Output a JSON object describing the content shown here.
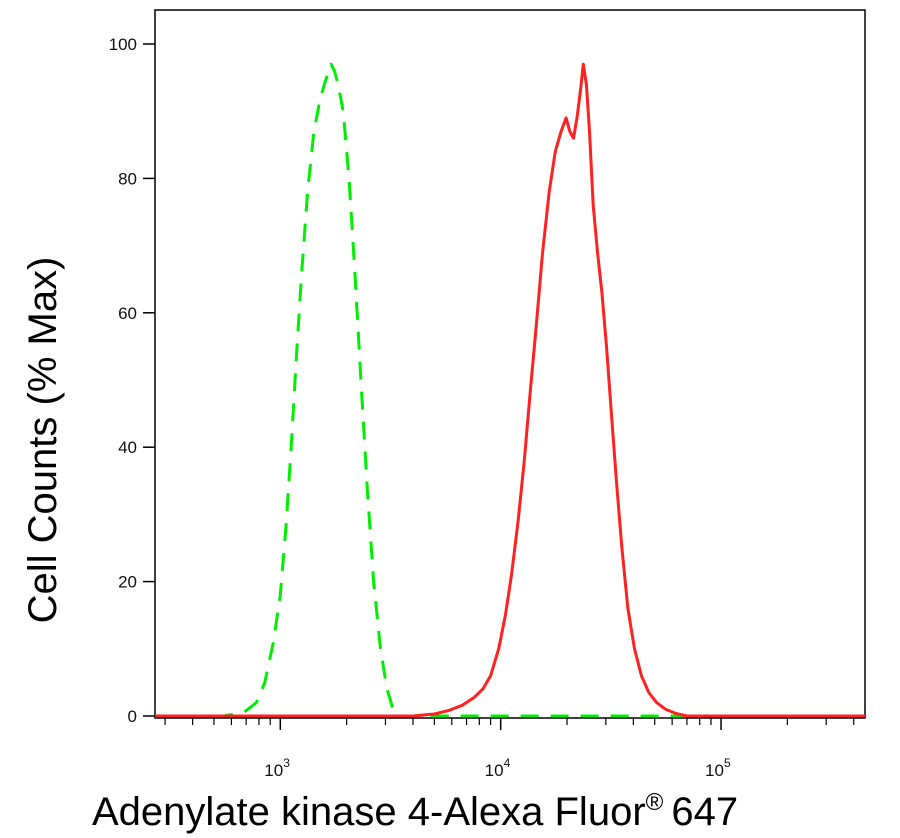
{
  "chart_data": {
    "type": "line",
    "xlabel": "Adenylate kinase 4-Alexa Fluor",
    "xlabel_superscript": "®",
    "xlabel_suffix": "647",
    "ylabel": "Cell Counts (% Max)",
    "xscale": "log",
    "xlim": [
      270,
      450000
    ],
    "ylim": [
      0,
      100
    ],
    "grid": false,
    "y_ticks": [
      {
        "value": 0,
        "label": "0"
      },
      {
        "value": 20,
        "label": "20"
      },
      {
        "value": 40,
        "label": "40"
      },
      {
        "value": 60,
        "label": "60"
      },
      {
        "value": 80,
        "label": "80"
      },
      {
        "value": 100,
        "label": "100"
      }
    ],
    "x_ticks": [
      {
        "value": 1000,
        "base": "10",
        "exp": "3"
      },
      {
        "value": 10000,
        "base": "10",
        "exp": "4"
      },
      {
        "value": 100000,
        "base": "10",
        "exp": "5"
      }
    ],
    "series": [
      {
        "color": "#00ee00",
        "style": "dashed",
        "points": [
          [
            270,
            0
          ],
          [
            550,
            0
          ],
          [
            680,
            0.5
          ],
          [
            780,
            2
          ],
          [
            850,
            5
          ],
          [
            930,
            11
          ],
          [
            1000,
            18
          ],
          [
            1060,
            28
          ],
          [
            1120,
            40
          ],
          [
            1180,
            53
          ],
          [
            1250,
            66
          ],
          [
            1330,
            78
          ],
          [
            1420,
            87
          ],
          [
            1520,
            92
          ],
          [
            1620,
            95
          ],
          [
            1700,
            97
          ],
          [
            1760,
            96
          ],
          [
            1830,
            94
          ],
          [
            1930,
            90
          ],
          [
            2050,
            80
          ],
          [
            2180,
            66
          ],
          [
            2320,
            50
          ],
          [
            2480,
            34
          ],
          [
            2650,
            20
          ],
          [
            2850,
            10
          ],
          [
            3050,
            4
          ],
          [
            3250,
            1
          ],
          [
            3500,
            0
          ],
          [
            450000,
            0
          ]
        ]
      },
      {
        "color": "#ff2020",
        "style": "solid",
        "points": [
          [
            270,
            0
          ],
          [
            4000,
            0
          ],
          [
            5000,
            0.3
          ],
          [
            5800,
            0.8
          ],
          [
            6700,
            1.6
          ],
          [
            7600,
            2.8
          ],
          [
            8300,
            4
          ],
          [
            9000,
            6
          ],
          [
            9800,
            10
          ],
          [
            10500,
            15
          ],
          [
            11200,
            21
          ],
          [
            12000,
            29
          ],
          [
            12800,
            38
          ],
          [
            13600,
            48
          ],
          [
            14500,
            58
          ],
          [
            15500,
            69
          ],
          [
            16600,
            78
          ],
          [
            17700,
            84
          ],
          [
            18800,
            87
          ],
          [
            19800,
            89
          ],
          [
            20600,
            87
          ],
          [
            21400,
            86
          ],
          [
            22200,
            89
          ],
          [
            23000,
            93
          ],
          [
            23700,
            97
          ],
          [
            24500,
            94
          ],
          [
            25300,
            87
          ],
          [
            26300,
            76
          ],
          [
            27500,
            69
          ],
          [
            28800,
            63
          ],
          [
            30200,
            55
          ],
          [
            31800,
            45
          ],
          [
            33500,
            35
          ],
          [
            35500,
            25
          ],
          [
            37800,
            16
          ],
          [
            40500,
            10
          ],
          [
            43500,
            6
          ],
          [
            47000,
            3.5
          ],
          [
            51000,
            2
          ],
          [
            56000,
            1
          ],
          [
            62000,
            0.4
          ],
          [
            70000,
            0
          ],
          [
            450000,
            0
          ]
        ]
      }
    ]
  }
}
